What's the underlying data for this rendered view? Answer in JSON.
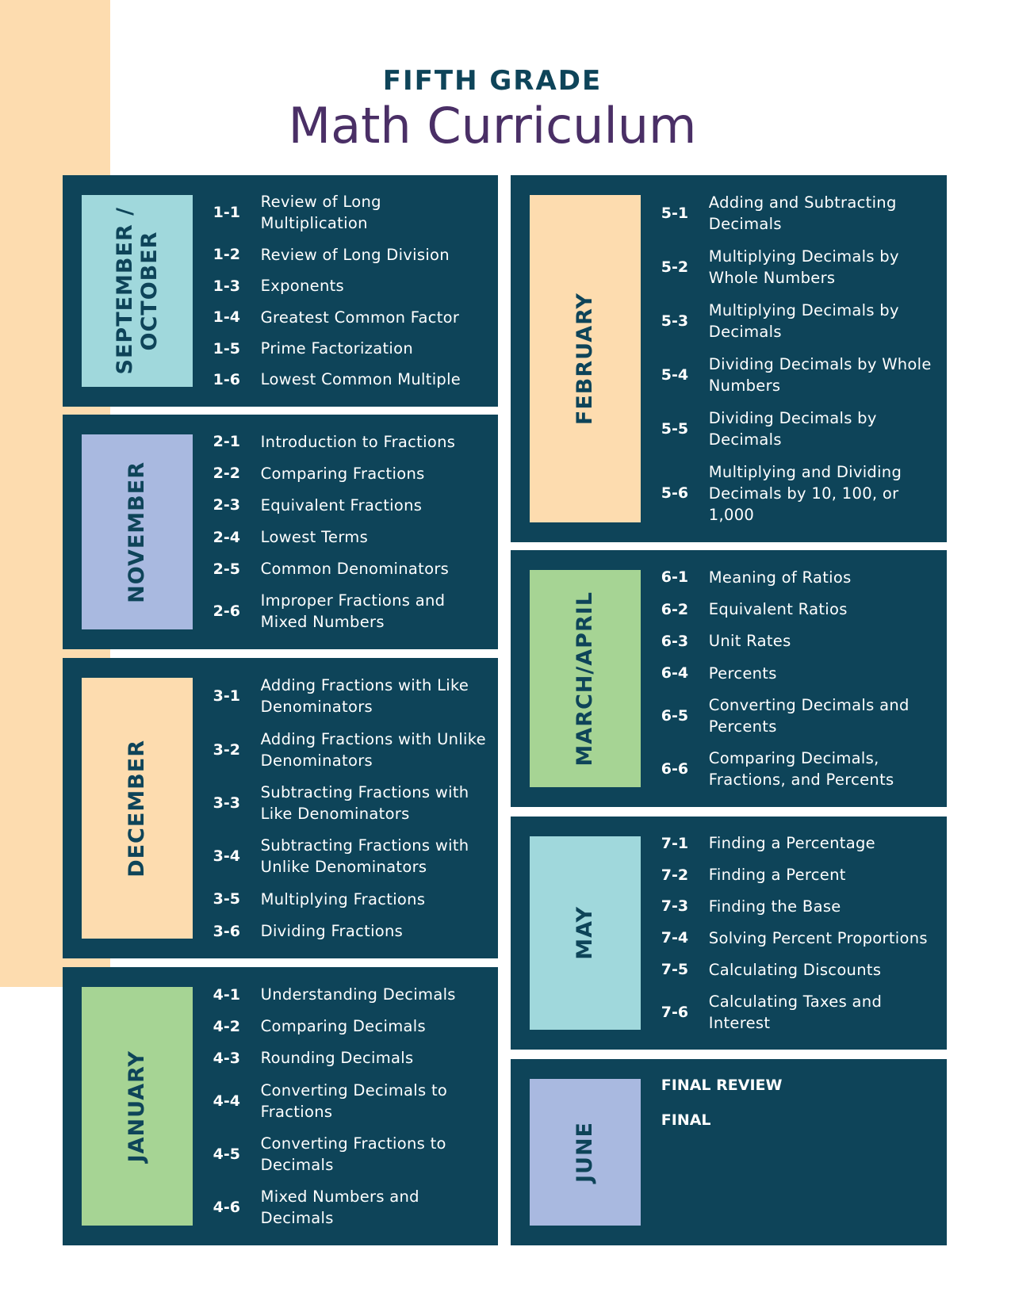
{
  "header": {
    "subtitle": "FIFTH GRADE",
    "title": "Math Curriculum"
  },
  "sections": [
    {
      "month": "SEPTEMBER / OCTOBER",
      "lessons": [
        {
          "num": "1-1",
          "title": "Review of Long Multiplication"
        },
        {
          "num": "1-2",
          "title": "Review of Long Division"
        },
        {
          "num": "1-3",
          "title": "Exponents"
        },
        {
          "num": "1-4",
          "title": "Greatest Common Factor"
        },
        {
          "num": "1-5",
          "title": "Prime Factorization"
        },
        {
          "num": "1-6",
          "title": "Lowest Common Multiple"
        }
      ]
    },
    {
      "month": "NOVEMBER",
      "lessons": [
        {
          "num": "2-1",
          "title": "Introduction to Fractions"
        },
        {
          "num": "2-2",
          "title": "Comparing Fractions"
        },
        {
          "num": "2-3",
          "title": "Equivalent Fractions"
        },
        {
          "num": "2-4",
          "title": "Lowest Terms"
        },
        {
          "num": "2-5",
          "title": "Common Denominators"
        },
        {
          "num": "2-6",
          "title": "Improper Fractions and Mixed Numbers"
        }
      ]
    },
    {
      "month": "DECEMBER",
      "lessons": [
        {
          "num": "3-1",
          "title": "Adding Fractions with Like Denominators"
        },
        {
          "num": "3-2",
          "title": "Adding Fractions with Unlike Denominators"
        },
        {
          "num": "3-3",
          "title": "Subtracting Fractions with Like Denominators"
        },
        {
          "num": "3-4",
          "title": "Subtracting Fractions with Unlike Denominators"
        },
        {
          "num": "3-5",
          "title": "Multiplying Fractions"
        },
        {
          "num": "3-6",
          "title": "Dividing Fractions"
        }
      ]
    },
    {
      "month": "JANUARY",
      "lessons": [
        {
          "num": "4-1",
          "title": "Understanding Decimals"
        },
        {
          "num": "4-2",
          "title": "Comparing Decimals"
        },
        {
          "num": "4-3",
          "title": "Rounding Decimals"
        },
        {
          "num": "4-4",
          "title": "Converting Decimals to Fractions"
        },
        {
          "num": "4-5",
          "title": "Converting Fractions to Decimals"
        },
        {
          "num": "4-6",
          "title": "Mixed Numbers and Decimals"
        }
      ]
    },
    {
      "month": "FEBRUARY",
      "lessons": [
        {
          "num": "5-1",
          "title": "Adding and Subtracting Decimals"
        },
        {
          "num": "5-2",
          "title": "Multiplying Decimals by Whole Numbers"
        },
        {
          "num": "5-3",
          "title": "Multiplying Decimals by Decimals"
        },
        {
          "num": "5-4",
          "title": "Dividing Decimals by Whole Numbers"
        },
        {
          "num": "5-5",
          "title": "Dividing Decimals by Decimals"
        },
        {
          "num": "5-6",
          "title": "Multiplying and Dividing Decimals by 10, 100, or 1,000"
        }
      ]
    },
    {
      "month": "MARCH/APRIL",
      "lessons": [
        {
          "num": "6-1",
          "title": "Meaning of Ratios"
        },
        {
          "num": "6-2",
          "title": "Equivalent Ratios"
        },
        {
          "num": "6-3",
          "title": "Unit Rates"
        },
        {
          "num": "6-4",
          "title": "Percents"
        },
        {
          "num": "6-5",
          "title": "Converting Decimals and Percents"
        },
        {
          "num": "6-6",
          "title": "Comparing Decimals, Fractions, and Percents"
        }
      ]
    },
    {
      "month": "MAY",
      "lessons": [
        {
          "num": "7-1",
          "title": "Finding a Percentage"
        },
        {
          "num": "7-2",
          "title": "Finding a Percent"
        },
        {
          "num": "7-3",
          "title": "Finding the Base"
        },
        {
          "num": "7-4",
          "title": "Solving Percent Proportions"
        },
        {
          "num": "7-5",
          "title": "Calculating Discounts"
        },
        {
          "num": "7-6",
          "title": "Calculating Taxes and Interest"
        }
      ]
    },
    {
      "month": "JUNE",
      "items": [
        "FINAL REVIEW",
        "FINAL"
      ]
    }
  ]
}
